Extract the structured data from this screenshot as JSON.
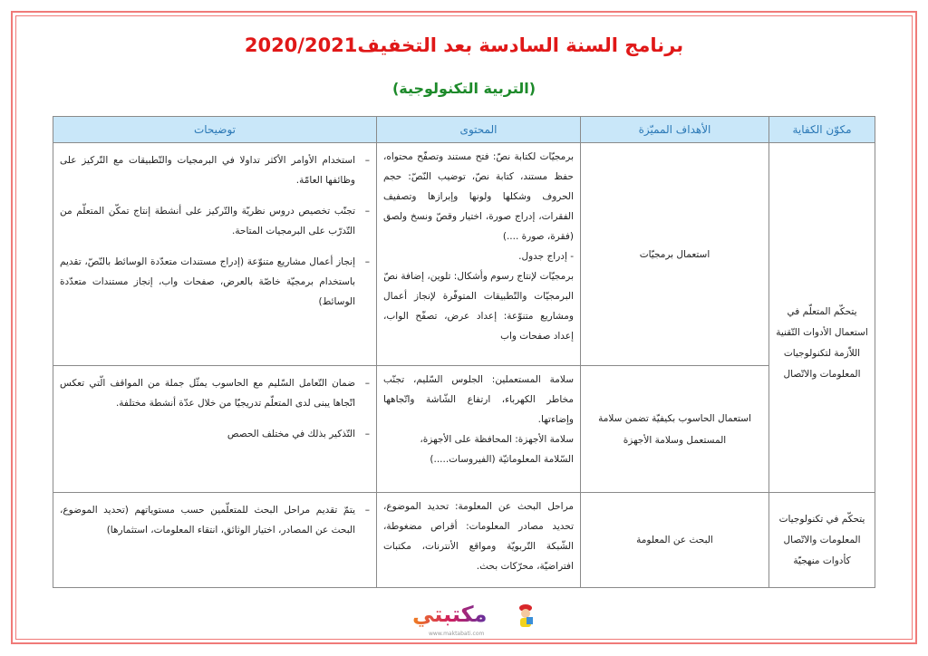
{
  "header": {
    "title": "برنامج السنة السادسة بعد التخفيف2020/2021",
    "subtitle": "(التربية التكنولوجية)"
  },
  "table": {
    "columns": [
      "مكوّن الكفاية",
      "الأهداف المميّزة",
      "المحتوى",
      "توضيحات"
    ],
    "rows": [
      {
        "component": "يتحكّم المتعلّم في استعمال الأدوات التّقنية اللاّزمة لتكنولوجيات المعلومات والاتّصال",
        "objective": "استعمال برمجيّات",
        "content": [
          "برمجيّات لكتابة نصّ: فتح مستند وتصفّح محتواه، حفظ مستند، كتابة نصّ، توضيب النّصّ: حجم الحروف وشكلها ولونها وإبرازها وتصفيف الفقرات، إدراج صورة، اختيار وقصّ ونسخ ولصق (فقرة، صورة ....)",
          "- إدراج جدول.",
          "برمجيّات لإنتاج رسوم وأشكال: تلوين، إضافة نصّ",
          "البرمجيّات والتّطبيقات المتوفّرة لإنجاز أعمال ومشاريع متنوّعة: إعداد عرض، تصفّح الواب، إعداد صفحات واب"
        ],
        "notes": [
          "استخدام الأوامر الأكثر تداولا في البرمجيات والتّطبيقات مع التّركيز على وظائفها العامّة.",
          "تجنّب تخصيص دروس نظريّة والتّركيز على أنشطة إنتاج تمكّن المتعلّم من التّدرّب على البرمجيات المتاحة.",
          "إنجاز أعمال مشاريع متنوّعة (إدراج مستندات متعدّدة الوسائط بالنّصّ، تقديم باستخدام برمجيّة خاصّة بالعرض، صفحات واب، إنجاز مستندات متعدّدة الوسائط)"
        ]
      },
      {
        "objective": "استعمال الحاسوب بكيفيّة تضمن سلامة المستعمل وسلامة الأجهزة",
        "content": [
          "سلامة المستعملين: الجلوس السّليم، تجنّب مخاطر الكهرباء، ارتفاع الشّاشة واتّجاهها وإضاءتها.",
          "سلامة الأجهزة: المحافظة على الأجهزة،",
          "السّلامة المعلوماتيّة (الفيروسات.....)"
        ],
        "notes": [
          "ضمان التّعامل السّليم مع الحاسوب يمثّل جملة من المواقف الّتي تعكس اتّجاها يبنى لدى المتعلّم تدريجيّا من خلال عدّة أنشطة مختلفة.",
          "التّذكير بذلك في مختلف الحصص"
        ]
      },
      {
        "component": "يتحكّم في تكنولوجيات المعلومات والاتّصال كأدوات منهجيّة",
        "objective": "البحث عن المعلومة",
        "content": [
          "مراحل البحث عن المعلومة: تحديد الموضوع، تحديد مصادر المعلومات: أقراص مضغوطة، الشّبكة التّربويّة ومواقع الأنترنات، مكتبات افتراضيّة، محرّكات بحث."
        ],
        "notes": [
          "يتمّ تقديم مراحل البحث للمتعلّمين حسب مستوياتهم (تحديد الموضوع، البحث عن المصادر، اختيار الوثائق، انتقاء المعلومات، استثمارها)"
        ]
      }
    ]
  },
  "logo": {
    "text": "مكتبتي",
    "url": "www.maktabati.com"
  },
  "colors": {
    "title": "#e01818",
    "subtitle": "#1d8a2a",
    "header_bg": "#c9e7f9",
    "header_text": "#2a78b6",
    "frame": "#f07a78"
  }
}
